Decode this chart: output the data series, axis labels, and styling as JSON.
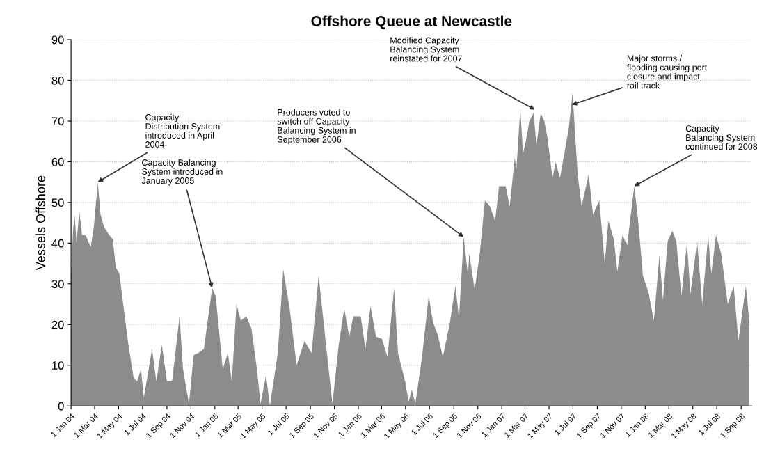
{
  "chart_data": {
    "type": "area",
    "title": "Offshore Queue at Newcastle",
    "ylabel": "Vessels Offshore",
    "x": [
      "2004-01-01",
      "2004-01-06",
      "2004-01-10",
      "2004-01-15",
      "2004-01-22",
      "2004-01-29",
      "2004-02-07",
      "2004-02-20",
      "2004-02-28",
      "2004-03-09",
      "2004-03-16",
      "2004-03-25",
      "2004-04-07",
      "2004-04-16",
      "2004-04-24",
      "2004-05-03",
      "2004-05-14",
      "2004-05-26",
      "2004-06-08",
      "2004-06-17",
      "2004-06-27",
      "2004-07-04",
      "2004-07-13",
      "2004-07-25",
      "2004-08-05",
      "2004-08-19",
      "2004-09-01",
      "2004-09-14",
      "2004-10-03",
      "2004-10-12",
      "2004-10-27",
      "2004-11-08",
      "2004-11-20",
      "2004-12-04",
      "2004-12-25",
      "2005-01-03",
      "2005-01-21",
      "2005-02-03",
      "2005-02-13",
      "2005-02-25",
      "2005-03-08",
      "2005-03-22",
      "2005-04-04",
      "2005-04-18",
      "2005-04-27",
      "2005-05-11",
      "2005-05-21",
      "2005-06-10",
      "2005-06-24",
      "2005-07-10",
      "2005-07-28",
      "2005-08-17",
      "2005-09-04",
      "2005-09-22",
      "2005-10-13",
      "2005-10-27",
      "2005-11-12",
      "2005-11-26",
      "2005-12-09",
      "2005-12-19",
      "2006-01-07",
      "2006-01-19",
      "2006-02-01",
      "2006-02-15",
      "2006-03-02",
      "2006-03-16",
      "2006-04-02",
      "2006-04-12",
      "2006-04-30",
      "2006-05-09",
      "2006-05-17",
      "2006-05-26",
      "2006-06-12",
      "2006-06-29",
      "2006-07-10",
      "2006-07-22",
      "2006-08-04",
      "2006-08-22",
      "2006-09-05",
      "2006-09-14",
      "2006-09-26",
      "2006-10-07",
      "2006-10-10",
      "2006-10-24",
      "2006-11-06",
      "2006-11-19",
      "2006-12-02",
      "2006-12-15",
      "2006-12-25",
      "2007-01-11",
      "2007-01-21",
      "2007-02-03",
      "2007-02-07",
      "2007-02-17",
      "2007-02-24",
      "2007-03-05",
      "2007-03-12",
      "2007-03-23",
      "2007-03-30",
      "2007-04-10",
      "2007-04-19",
      "2007-04-27",
      "2007-05-10",
      "2007-05-18",
      "2007-05-29",
      "2007-06-09",
      "2007-06-20",
      "2007-06-30",
      "2007-07-07",
      "2007-07-13",
      "2007-07-23",
      "2007-08-10",
      "2007-08-21",
      "2007-09-06",
      "2007-09-20",
      "2007-09-29",
      "2007-10-13",
      "2007-10-22",
      "2007-11-04",
      "2007-11-16",
      "2007-12-04",
      "2007-12-14",
      "2007-12-26",
      "2008-01-09",
      "2008-01-23",
      "2008-02-06",
      "2008-02-15",
      "2008-02-27",
      "2008-03-10",
      "2008-03-20",
      "2008-04-02",
      "2008-04-16",
      "2008-04-25",
      "2008-05-12",
      "2008-05-25",
      "2008-06-09",
      "2008-06-17",
      "2008-06-29",
      "2008-07-12",
      "2008-07-29",
      "2008-08-13",
      "2008-08-25",
      "2008-09-13",
      "2008-09-22"
    ],
    "values": [
      32,
      43,
      47,
      40,
      48,
      42,
      42,
      39,
      44,
      55,
      47,
      44,
      42,
      41,
      34,
      32.5,
      24,
      15,
      7,
      6,
      9,
      2,
      7,
      14,
      6,
      15,
      6,
      6,
      22,
      9,
      0.5,
      12.5,
      13,
      14,
      29,
      27,
      9,
      13,
      6,
      25,
      21,
      22,
      19,
      9,
      0.5,
      7.5,
      0,
      13,
      33.5,
      24,
      10,
      16,
      13,
      32,
      13,
      0.5,
      15,
      24,
      17,
      22,
      22,
      14,
      24.5,
      17,
      16.5,
      12,
      29,
      13,
      6,
      1,
      4,
      0.5,
      12,
      27,
      20.5,
      17.5,
      12,
      20.5,
      29.5,
      21.5,
      41.5,
      32,
      37.5,
      28.5,
      37.5,
      50.5,
      49,
      45.5,
      54,
      54,
      49,
      61,
      58,
      73,
      62,
      66,
      70,
      72,
      64,
      72,
      70,
      66,
      56,
      60,
      56,
      62,
      68,
      77,
      66,
      57,
      49,
      57,
      47,
      50.5,
      35,
      45.5,
      41,
      33,
      42,
      39.5,
      54,
      45.5,
      32,
      28,
      21,
      37,
      26,
      40.5,
      43,
      40.5,
      27,
      40,
      27.5,
      40.5,
      25,
      42,
      32.5,
      42,
      37.5,
      25,
      29.5,
      16,
      29.5,
      20.5
    ],
    "color": "#8c8c8c",
    "xlim": [
      "2004-01-01",
      "2008-09-28"
    ],
    "xticks": [
      {
        "value": "2004-01-01",
        "label": "1 Jan 04"
      },
      {
        "value": "2004-03-01",
        "label": "1 Mar 04"
      },
      {
        "value": "2004-05-01",
        "label": "1 May 04"
      },
      {
        "value": "2004-07-01",
        "label": "1 Jul 04"
      },
      {
        "value": "2004-09-01",
        "label": "1 Sep 04"
      },
      {
        "value": "2004-11-01",
        "label": "1 Nov 04"
      },
      {
        "value": "2005-01-01",
        "label": "1 Jan 05"
      },
      {
        "value": "2005-03-01",
        "label": "1 Mar 05"
      },
      {
        "value": "2005-05-01",
        "label": "1 May 05"
      },
      {
        "value": "2005-07-01",
        "label": "1 Jul 05"
      },
      {
        "value": "2005-09-01",
        "label": "1 Sep 05"
      },
      {
        "value": "2005-11-01",
        "label": "1 Nov 05"
      },
      {
        "value": "2006-01-01",
        "label": "1 Jan 06"
      },
      {
        "value": "2006-03-01",
        "label": "1 Mar 06"
      },
      {
        "value": "2006-05-01",
        "label": "1 May 06"
      },
      {
        "value": "2006-07-01",
        "label": "1 Jul 06"
      },
      {
        "value": "2006-09-01",
        "label": "1 Sep 06"
      },
      {
        "value": "2006-11-01",
        "label": "1 Nov 06"
      },
      {
        "value": "2007-01-01",
        "label": "1 Jan 07"
      },
      {
        "value": "2007-03-01",
        "label": "1 Mar 07"
      },
      {
        "value": "2007-05-01",
        "label": "1 May 07"
      },
      {
        "value": "2007-07-01",
        "label": "1 Jul 07"
      },
      {
        "value": "2007-09-01",
        "label": "1 Sep 07"
      },
      {
        "value": "2007-11-01",
        "label": "1 Nov 07"
      },
      {
        "value": "2008-01-01",
        "label": "1 Jan 08"
      },
      {
        "value": "2008-03-01",
        "label": "1 Mar 08"
      },
      {
        "value": "2008-05-01",
        "label": "1 May 08"
      },
      {
        "value": "2008-07-01",
        "label": "1 Jul 08"
      },
      {
        "value": "2008-09-01",
        "label": "1 Sep 08"
      }
    ],
    "ylim": [
      0,
      90
    ],
    "yticks": [
      0,
      10,
      20,
      30,
      40,
      50,
      60,
      70,
      80,
      90
    ],
    "grid": "y",
    "annotations": [
      {
        "text": "Capacity\nDistribution System\nintroduced in April\n2004",
        "x": "2004-03-09",
        "y": 55
      },
      {
        "text": "Capacity Balancing\nSystem introduced in\nJanuary 2005",
        "x": "2004-12-25",
        "y": 29
      },
      {
        "text": "Producers voted to\nswitch off Capacity\nBalancing System in\nSeptember 2006",
        "x": "2006-09-26",
        "y": 41.5
      },
      {
        "text": "Modified Capacity\nBalancing System\nreinstated for 2007",
        "x": "2007-03-26",
        "y": 72.8
      },
      {
        "text": "Major storms /\nflooding causing port\nclosure and impact\nrail track",
        "x": "2007-06-28",
        "y": 74
      },
      {
        "text": "Capacity\nBalancing System\ncontinued for 2008",
        "x": "2007-12-04",
        "y": 54
      }
    ]
  }
}
